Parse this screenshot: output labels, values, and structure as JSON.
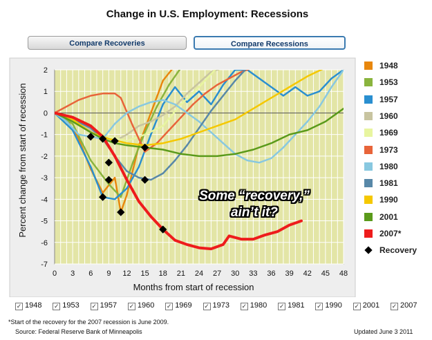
{
  "title": "Change in U.S. Employment: Recessions",
  "buttons": {
    "recoveries": "Compare Recoveries",
    "recessions": "Compare Recessions"
  },
  "annotation_line1": "Some “recovery,”",
  "annotation_line2": "ain’t it?",
  "footnote": "*Start of the recovery for the 2007 recession is June 2009.",
  "source": "Source: Federal Reserve Bank of Minneapolis",
  "updated": "Updated June 3 2011",
  "legend": [
    {
      "label": "1948",
      "color": "#e8870d"
    },
    {
      "label": "1953",
      "color": "#8ab43e"
    },
    {
      "label": "1957",
      "color": "#2a8fd0"
    },
    {
      "label": "1960",
      "color": "#c8c4a0"
    },
    {
      "label": "1969",
      "color": "#e8f5a0"
    },
    {
      "label": "1973",
      "color": "#e8643a"
    },
    {
      "label": "1980",
      "color": "#88c8e0"
    },
    {
      "label": "1981",
      "color": "#5888a8"
    },
    {
      "label": "1990",
      "color": "#f5c800"
    },
    {
      "label": "2001",
      "color": "#5a9a1a"
    },
    {
      "label": "2007*",
      "color": "#ee1c1c"
    },
    {
      "label": "Recovery",
      "color": "#000000"
    }
  ],
  "checkboxes": [
    "1948",
    "1953",
    "1957",
    "1960",
    "1969",
    "1973",
    "1980",
    "1981",
    "1990",
    "2001",
    "2007"
  ],
  "chart_data": {
    "type": "line",
    "xlabel": "Months from start of recession",
    "ylabel": "Percent change from start of recession",
    "xlim": [
      0,
      48
    ],
    "ylim": [
      -7,
      2
    ],
    "xticks": [
      0,
      3,
      6,
      9,
      12,
      15,
      18,
      21,
      24,
      27,
      30,
      33,
      36,
      39,
      42,
      45,
      48
    ],
    "yticks": [
      2,
      1,
      0,
      -1,
      -2,
      -3,
      -4,
      -5,
      -6,
      -7
    ],
    "grid": true,
    "series": [
      {
        "name": "1948",
        "color": "#e8870d",
        "points": [
          [
            0,
            0
          ],
          [
            2,
            -0.3
          ],
          [
            4,
            -1.2
          ],
          [
            6,
            -2.6
          ],
          [
            8,
            -3.7
          ],
          [
            10,
            -3.0
          ],
          [
            11,
            -4.6
          ],
          [
            12,
            -3.8
          ],
          [
            14,
            -1.5
          ],
          [
            16,
            0
          ],
          [
            18,
            1.5
          ],
          [
            20,
            2.2
          ]
        ],
        "recovery": [
          11,
          -4.6
        ]
      },
      {
        "name": "1953",
        "color": "#8ab43e",
        "points": [
          [
            0,
            0
          ],
          [
            3,
            -0.5
          ],
          [
            6,
            -2.2
          ],
          [
            9,
            -3.3
          ],
          [
            11,
            -3.9
          ],
          [
            13,
            -2.3
          ],
          [
            15,
            -0.9
          ],
          [
            17,
            0.3
          ],
          [
            19,
            1.3
          ],
          [
            21,
            2.1
          ]
        ],
        "recovery": [
          11,
          -3.9
        ]
      },
      {
        "name": "1957",
        "color": "#2a8fd0",
        "points": [
          [
            0,
            0
          ],
          [
            3,
            -0.8
          ],
          [
            6,
            -2.5
          ],
          [
            8,
            -3.9
          ],
          [
            10,
            -4.0
          ],
          [
            12,
            -3.5
          ],
          [
            14,
            -2.5
          ],
          [
            16,
            -1.0
          ],
          [
            18,
            0.4
          ],
          [
            20,
            1.2
          ],
          [
            22,
            0.5
          ],
          [
            24,
            1.0
          ],
          [
            26,
            0.4
          ],
          [
            28,
            1.3
          ],
          [
            30,
            2.0
          ],
          [
            32,
            2.0
          ],
          [
            34,
            1.6
          ],
          [
            36,
            1.2
          ],
          [
            38,
            0.8
          ],
          [
            40,
            1.2
          ],
          [
            42,
            0.8
          ],
          [
            44,
            1.0
          ],
          [
            46,
            1.6
          ],
          [
            48,
            2.0
          ]
        ],
        "recovery": [
          8,
          -3.9
        ]
      },
      {
        "name": "1960",
        "color": "#c8c4a0",
        "points": [
          [
            0,
            0
          ],
          [
            3,
            -0.2
          ],
          [
            6,
            -0.8
          ],
          [
            9,
            -1.2
          ],
          [
            10,
            -1.3
          ],
          [
            12,
            -1.0
          ],
          [
            14,
            -0.6
          ],
          [
            16,
            -0.4
          ],
          [
            18,
            -0.1
          ],
          [
            20,
            0.3
          ],
          [
            22,
            0.9
          ],
          [
            24,
            1.4
          ],
          [
            26,
            1.9
          ],
          [
            28,
            2.1
          ]
        ],
        "recovery": [
          10,
          -1.3
        ]
      },
      {
        "name": "1969",
        "color": "#e8f5a0",
        "points": [
          [
            0,
            0
          ],
          [
            3,
            -0.3
          ],
          [
            6,
            -0.7
          ],
          [
            9,
            -1.1
          ],
          [
            12,
            -1.3
          ],
          [
            15,
            -1.0
          ],
          [
            18,
            -0.6
          ],
          [
            21,
            0.4
          ],
          [
            24,
            1.2
          ],
          [
            27,
            2.1
          ]
        ],
        "recovery": [
          12,
          -1.3
        ]
      },
      {
        "name": "1973",
        "color": "#e8643a",
        "points": [
          [
            0,
            0
          ],
          [
            2,
            0.3
          ],
          [
            4,
            0.6
          ],
          [
            6,
            0.8
          ],
          [
            8,
            0.9
          ],
          [
            10,
            0.9
          ],
          [
            11,
            0.7
          ],
          [
            13,
            -0.6
          ],
          [
            15,
            -1.8
          ],
          [
            17,
            -1.4
          ],
          [
            19,
            -0.8
          ],
          [
            21,
            -0.2
          ],
          [
            23,
            0.4
          ],
          [
            25,
            0.9
          ],
          [
            27,
            1.3
          ],
          [
            29,
            1.6
          ],
          [
            31,
            1.9
          ],
          [
            33,
            2.1
          ]
        ],
        "recovery": [
          15,
          -1.8
        ]
      },
      {
        "name": "1980",
        "color": "#88c8e0",
        "points": [
          [
            0,
            0
          ],
          [
            2,
            -0.4
          ],
          [
            4,
            -1.0
          ],
          [
            6,
            -1.1
          ],
          [
            8,
            -1.2
          ],
          [
            10,
            -0.5
          ],
          [
            12,
            0.0
          ],
          [
            14,
            0.3
          ],
          [
            16,
            0.5
          ],
          [
            18,
            0.6
          ],
          [
            20,
            0.4
          ],
          [
            22,
            0.0
          ],
          [
            24,
            -0.4
          ],
          [
            26,
            -0.9
          ],
          [
            28,
            -1.4
          ],
          [
            30,
            -1.9
          ],
          [
            32,
            -2.2
          ],
          [
            34,
            -2.3
          ],
          [
            36,
            -2.1
          ],
          [
            38,
            -1.6
          ],
          [
            40,
            -1.0
          ],
          [
            42,
            -0.4
          ],
          [
            44,
            0.3
          ],
          [
            46,
            1.2
          ],
          [
            48,
            2.0
          ]
        ],
        "recovery": [
          6,
          -1.1
        ]
      },
      {
        "name": "1981",
        "color": "#5888a8",
        "points": [
          [
            0,
            0
          ],
          [
            3,
            -0.3
          ],
          [
            6,
            -0.7
          ],
          [
            8,
            -1.2
          ],
          [
            10,
            -2.0
          ],
          [
            12,
            -2.7
          ],
          [
            14,
            -3.0
          ],
          [
            16,
            -3.1
          ],
          [
            18,
            -2.8
          ],
          [
            20,
            -2.2
          ],
          [
            22,
            -1.5
          ],
          [
            24,
            -0.7
          ],
          [
            26,
            0.1
          ],
          [
            28,
            0.8
          ],
          [
            30,
            1.5
          ],
          [
            32,
            2.1
          ]
        ],
        "recovery": [
          16,
          -3.1
        ]
      },
      {
        "name": "1990",
        "color": "#f5c800",
        "points": [
          [
            0,
            0
          ],
          [
            3,
            -0.3
          ],
          [
            6,
            -0.9
          ],
          [
            9,
            -1.2
          ],
          [
            12,
            -1.4
          ],
          [
            15,
            -1.5
          ],
          [
            18,
            -1.4
          ],
          [
            21,
            -1.2
          ],
          [
            24,
            -0.9
          ],
          [
            27,
            -0.6
          ],
          [
            30,
            -0.3
          ],
          [
            33,
            0.2
          ],
          [
            36,
            0.7
          ],
          [
            39,
            1.2
          ],
          [
            42,
            1.7
          ],
          [
            45,
            2.1
          ]
        ],
        "recovery": [
          9,
          -1.2
        ]
      },
      {
        "name": "2001",
        "color": "#5a9a1a",
        "points": [
          [
            0,
            0
          ],
          [
            3,
            -0.4
          ],
          [
            6,
            -0.9
          ],
          [
            8,
            -1.2
          ],
          [
            10,
            -1.4
          ],
          [
            12,
            -1.5
          ],
          [
            15,
            -1.6
          ],
          [
            18,
            -1.7
          ],
          [
            21,
            -1.9
          ],
          [
            24,
            -2.0
          ],
          [
            27,
            -2.0
          ],
          [
            30,
            -1.9
          ],
          [
            33,
            -1.7
          ],
          [
            36,
            -1.4
          ],
          [
            39,
            -1.0
          ],
          [
            42,
            -0.8
          ],
          [
            45,
            -0.4
          ],
          [
            48,
            0.2
          ]
        ],
        "recovery": [
          8,
          -1.2
        ]
      },
      {
        "name": "2007*",
        "color": "#ee1c1c",
        "points": [
          [
            0,
            0
          ],
          [
            3,
            -0.2
          ],
          [
            6,
            -0.6
          ],
          [
            8,
            -1.1
          ],
          [
            10,
            -2.0
          ],
          [
            12,
            -3.1
          ],
          [
            14,
            -4.1
          ],
          [
            16,
            -4.8
          ],
          [
            18,
            -5.4
          ],
          [
            20,
            -5.9
          ],
          [
            22,
            -6.1
          ],
          [
            24,
            -6.25
          ],
          [
            26,
            -6.3
          ],
          [
            28,
            -6.1
          ],
          [
            29,
            -5.7
          ],
          [
            31,
            -5.85
          ],
          [
            33,
            -5.85
          ],
          [
            35,
            -5.65
          ],
          [
            37,
            -5.5
          ],
          [
            39,
            -5.2
          ],
          [
            41,
            -5.0
          ]
        ],
        "recovery": [
          18,
          -5.4
        ]
      }
    ],
    "recovery_points": [
      [
        6,
        -1.1
      ],
      [
        8,
        -1.2
      ],
      [
        8,
        -3.9
      ],
      [
        9,
        -3.1
      ],
      [
        9,
        -2.3
      ],
      [
        10,
        -1.3
      ],
      [
        11,
        -4.6
      ],
      [
        15,
        -1.6
      ],
      [
        15,
        -3.1
      ],
      [
        18,
        -5.4
      ]
    ]
  }
}
